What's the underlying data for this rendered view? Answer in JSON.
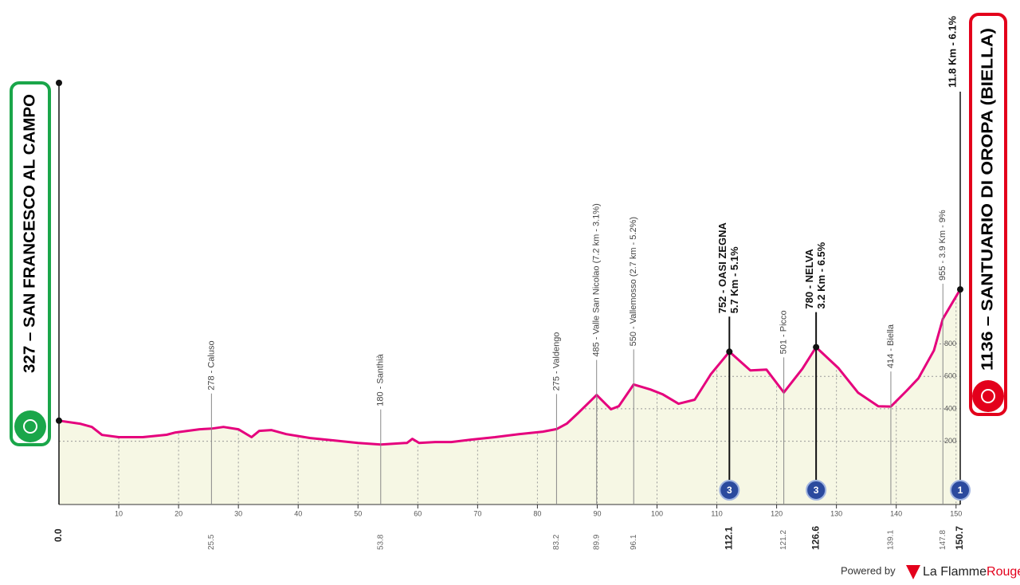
{
  "chart_data": {
    "type": "area",
    "start_label": "327 – SAN FRANCESCO AL CAMPO",
    "finish_label": "1136 – SANTUARIO DI OROPA (BIELLA)",
    "finish_climb": "11.8 Km - 6.1%",
    "finish_category": "1",
    "start_km": {
      "value": 0,
      "label": "0.0"
    },
    "finish_km": 150.7,
    "x": [
      0,
      3.5,
      5.5,
      7.2,
      10,
      14,
      18,
      19.5,
      23.5,
      25.5,
      27.5,
      30,
      32.2,
      33.5,
      35.5,
      38,
      42,
      46,
      50,
      53.8,
      58.2,
      59.1,
      60.2,
      62.9,
      65.6,
      68.9,
      72.9,
      76.9,
      80.9,
      83.2,
      84.9,
      86.9,
      89.9,
      92.3,
      93.6,
      96.1,
      98.9,
      100.9,
      103.6,
      106.3,
      109,
      112.1,
      115.6,
      118.3,
      121.2,
      124.3,
      126.6,
      130.3,
      133.6,
      137,
      139.1,
      141.7,
      143.7,
      146.3,
      147.8,
      150.7
    ],
    "values": [
      327,
      308,
      288,
      239,
      225,
      225,
      240,
      254,
      274,
      278,
      288,
      274,
      225,
      264,
      269,
      244,
      220,
      205,
      190,
      180,
      190,
      215,
      190,
      195,
      195,
      210,
      225,
      244,
      259,
      275,
      308,
      377,
      485,
      397,
      416,
      550,
      519,
      490,
      431,
      456,
      613,
      752,
      637,
      642,
      501,
      647,
      780,
      652,
      500,
      416,
      414,
      510,
      588,
      760,
      955,
      1136
    ],
    "color": "#e5007d",
    "fill": "#f6f7e4",
    "xlim": [
      0,
      150.7
    ],
    "ylim": [
      -190,
      1400
    ],
    "xticks": [
      10,
      20,
      30,
      40,
      50,
      60,
      70,
      80,
      90,
      100,
      110,
      120,
      130,
      140,
      150
    ],
    "yticks": [
      200,
      400,
      600,
      800
    ],
    "grid": true,
    "markers": [
      {
        "km": 25.5,
        "lines": [
          "278 - Caluso"
        ]
      },
      {
        "km": 53.8,
        "lines": [
          "180 - Santhià"
        ]
      },
      {
        "km": 83.2,
        "lines": [
          "275 - Valdengo"
        ]
      },
      {
        "km": 89.9,
        "lines": [
          "485 - Valle San Nicolao (7.2 km - 3.1%)"
        ]
      },
      {
        "km": 96.1,
        "lines": [
          "550 - Vallemosso (2.7 km - 5.2%)"
        ]
      },
      {
        "km": 112.1,
        "lines": [
          "752 - OASI ZEGNA",
          "5.7 Km - 5.1%"
        ],
        "major": true,
        "category": "3"
      },
      {
        "km": 121.2,
        "lines": [
          "501 - Picco"
        ]
      },
      {
        "km": 126.6,
        "lines": [
          "780 - NELVA",
          "3.2 Km - 6.5%"
        ],
        "major": true,
        "category": "3"
      },
      {
        "km": 139.1,
        "lines": [
          "414 - Biella"
        ]
      },
      {
        "km": 147.8,
        "lines": [
          "955 - 3.9 Km - 9%"
        ]
      }
    ]
  },
  "footer": {
    "powered": "Powered by",
    "brand": [
      "La Flamme",
      "Rouge"
    ]
  }
}
